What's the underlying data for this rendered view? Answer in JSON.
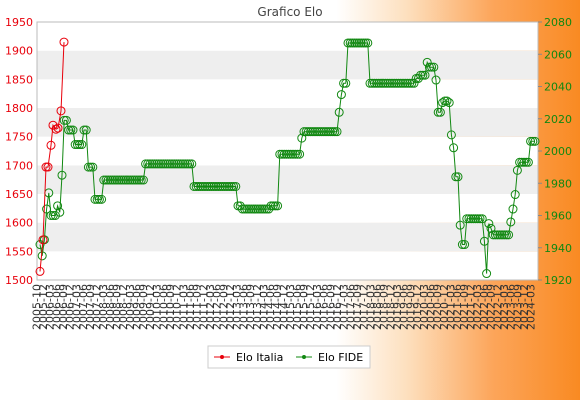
{
  "chart_data": {
    "type": "line",
    "title": "Grafico Elo",
    "y_left": {
      "ticks": [
        "1500",
        "1550",
        "1600",
        "1650",
        "1700",
        "1750",
        "1800",
        "1850",
        "1900",
        "1950"
      ],
      "range": [
        1500,
        1950
      ],
      "color": "#e8000b"
    },
    "y_right": {
      "ticks": [
        "1920",
        "1940",
        "1960",
        "1980",
        "2000",
        "2020",
        "2040",
        "2060",
        "2080"
      ],
      "range": [
        1920,
        2080
      ],
      "color": "#118811"
    },
    "grid": "horizontal bands",
    "legend_position": "bottom-center",
    "series": [
      {
        "name": "Elo Italia",
        "axis": "left",
        "color": "#e8000b",
        "values": [
          1515,
          1570,
          1697,
          1697,
          1735,
          1770,
          1763,
          1765,
          1795,
          1915
        ]
      },
      {
        "name": "Elo FIDE",
        "axis": "right",
        "color": "#118811",
        "values": [
          1942,
          1935,
          1945,
          1964,
          1974,
          1960,
          1960,
          1960,
          1966,
          1962,
          1985,
          2019,
          2019,
          2013,
          2013,
          2013,
          2004,
          2004,
          2004,
          2004,
          2013,
          2013,
          1990,
          1990,
          1990,
          1970,
          1970,
          1970,
          1970,
          1982,
          1982,
          1982,
          1982,
          1982,
          1982,
          1982,
          1982,
          1982,
          1982,
          1982,
          1982,
          1982,
          1982,
          1982,
          1982,
          1982,
          1982,
          1982,
          1992,
          1992,
          1992,
          1992,
          1992,
          1992,
          1992,
          1992,
          1992,
          1992,
          1992,
          1992,
          1992,
          1992,
          1992,
          1992,
          1992,
          1992,
          1992,
          1992,
          1992,
          1992,
          1978,
          1978,
          1978,
          1978,
          1978,
          1978,
          1978,
          1978,
          1978,
          1978,
          1978,
          1978,
          1978,
          1978,
          1978,
          1978,
          1978,
          1978,
          1978,
          1978,
          1966,
          1966,
          1964,
          1964,
          1964,
          1964,
          1964,
          1964,
          1964,
          1964,
          1964,
          1964,
          1964,
          1964,
          1964,
          1966,
          1966,
          1966,
          1966,
          1998,
          1998,
          1998,
          1998,
          1998,
          1998,
          1998,
          1998,
          1998,
          1998,
          2008,
          2012,
          2012,
          2012,
          2012,
          2012,
          2012,
          2012,
          2012,
          2012,
          2012,
          2012,
          2012,
          2012,
          2012,
          2012,
          2012,
          2024,
          2035,
          2042,
          2042,
          2067,
          2067,
          2067,
          2067,
          2067,
          2067,
          2067,
          2067,
          2067,
          2067,
          2042,
          2042,
          2042,
          2042,
          2042,
          2042,
          2042,
          2042,
          2042,
          2042,
          2042,
          2042,
          2042,
          2042,
          2042,
          2042,
          2042,
          2042,
          2042,
          2042,
          2042,
          2045,
          2045,
          2047,
          2047,
          2047,
          2055,
          2052,
          2052,
          2052,
          2044,
          2024,
          2024,
          2030,
          2031,
          2031,
          2030,
          2010,
          2002,
          1984,
          1984,
          1954,
          1942,
          1942,
          1958,
          1958,
          1958,
          1958,
          1958,
          1958,
          1958,
          1958,
          1944,
          1924,
          1955,
          1952,
          1948,
          1948,
          1948,
          1948,
          1948,
          1948,
          1948,
          1948,
          1956,
          1964,
          1973,
          1988,
          1993,
          1993,
          1993,
          1993,
          1993,
          2006,
          2006,
          2006
        ]
      }
    ],
    "x_tick_labels": [
      "2005-10",
      "2005-12",
      "2006-03",
      "2006-06",
      "2006-09",
      "2006-12",
      "2007-03",
      "2007-06",
      "2007-09",
      "2007-12",
      "2008-03",
      "2008-06",
      "2008-09",
      "2008-12",
      "2009-03",
      "2009-06",
      "2009-09",
      "2009-12",
      "2010-03",
      "2010-06",
      "2010-09",
      "2010-12",
      "2011-03",
      "2011-06",
      "2011-09",
      "2011-12",
      "2012-03",
      "2012-06",
      "2012-09",
      "2012-12",
      "2013-03",
      "2013-06",
      "2013-09",
      "2013-12",
      "2014-03",
      "2014-06",
      "2014-09",
      "2014-12",
      "2015-03",
      "2015-06",
      "2015-09",
      "2015-12",
      "2016-03",
      "2016-06",
      "2016-09",
      "2016-12",
      "2017-03",
      "2017-06",
      "2017-09",
      "2017-12",
      "2018-03",
      "2018-06",
      "2018-09",
      "2018-12",
      "2019-03",
      "2019-06",
      "2019-09",
      "2019-12",
      "2020-03",
      "2020-06",
      "2020-09",
      "2020-12",
      "2021-03",
      "2021-06",
      "2021-09",
      "2021-12",
      "2022-03",
      "2022-06",
      "2022-09",
      "2022-12",
      "2023-03",
      "2023-06",
      "2023-09",
      "2023-12",
      "2024-03"
    ]
  }
}
